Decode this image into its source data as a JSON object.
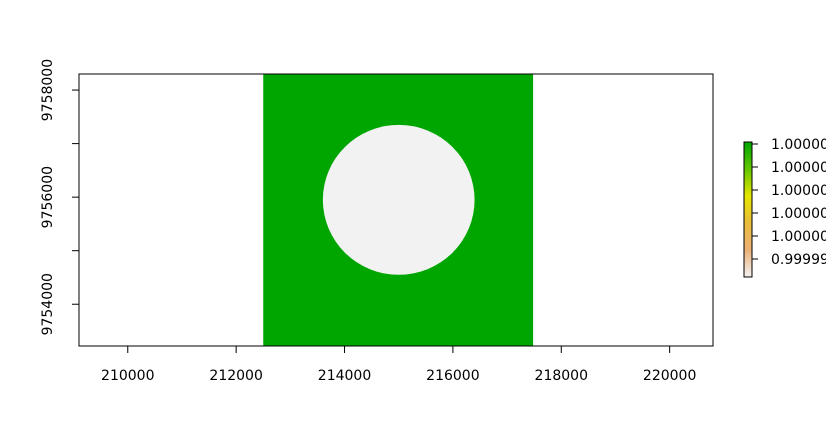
{
  "chart_data": {
    "type": "heatmap",
    "title": "",
    "xlabel": "",
    "ylabel": "",
    "xlim": [
      209100,
      220800
    ],
    "ylim": [
      9753220,
      9758300
    ],
    "x_ticks": [
      210000,
      212000,
      214000,
      216000,
      218000,
      220000
    ],
    "y_ticks": [
      9754000,
      9756000,
      9758000
    ],
    "raster": {
      "extent": {
        "xmin": 212500,
        "xmax": 217480,
        "ymin": 9753220,
        "ymax": 9758300
      },
      "fill_value": 1.0,
      "fill_color": "#00a600",
      "hole": {
        "shape": "circle",
        "center": [
          215000,
          9755950
        ],
        "radius": 1400,
        "value": 0.99999,
        "color": "#f2f2f2"
      }
    },
    "legend": {
      "placement": "right",
      "labels": [
        "1.00000",
        "1.00000",
        "1.00000",
        "1.00000",
        "1.00000",
        "0.99999"
      ],
      "colors": [
        "#00a600",
        "#63c600",
        "#e6e600",
        "#e9bd3a",
        "#ecb176",
        "#f2f2f2"
      ]
    },
    "grid": false
  }
}
